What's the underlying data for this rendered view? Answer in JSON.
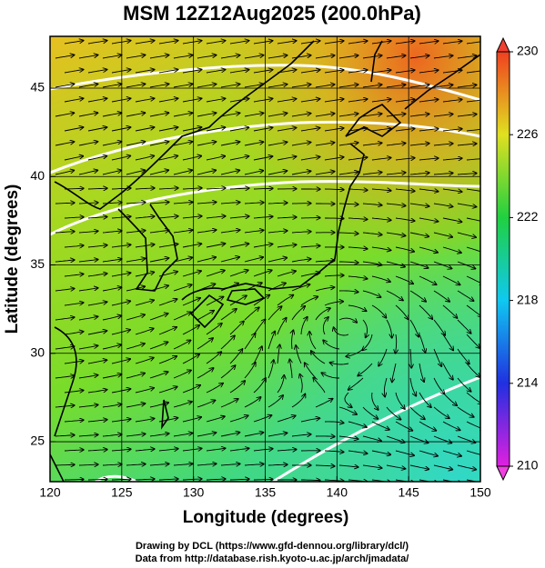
{
  "chart_data": {
    "type": "map",
    "title": "MSM 12Z12Aug2025 (200.0hPa)",
    "x_label": "Longitude (degrees)",
    "y_label": "Latitude  (degrees)",
    "xlim": [
      120,
      150
    ],
    "xticks": [
      120,
      125,
      130,
      135,
      140,
      145,
      150
    ],
    "ylim": [
      22.74,
      47.93
    ],
    "yticks": [
      25,
      30,
      35,
      40,
      45
    ],
    "grid": true,
    "colorbar": {
      "lim": [
        210,
        230
      ],
      "ticks": [
        210,
        214,
        218,
        222,
        226,
        230
      ]
    },
    "credits": [
      "Drawing by DCL (https://www.gfd-dennou.org/library/dcl/)",
      "Data from http://database.rish.kyoto-u.ac.jp/arch/jmadata/"
    ]
  }
}
